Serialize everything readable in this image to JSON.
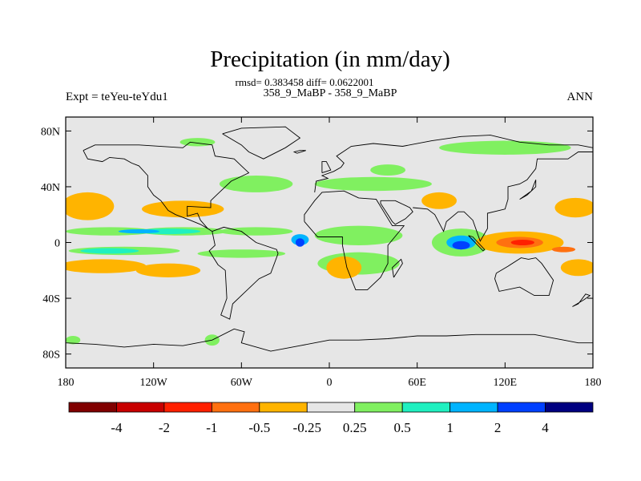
{
  "chart_data": {
    "type": "heatmap",
    "title": "Precipitation (in mm/day)",
    "stats_text": "rmsd= 0.383458 diff= 0.0622001",
    "subtitle": "358_9_MaBP - 358_9_MaBP",
    "left_label": "Expt = teYeu-teYdu1",
    "right_label": "ANN",
    "x_ticks": [
      {
        "value": -180,
        "label": "180"
      },
      {
        "value": -120,
        "label": "120W"
      },
      {
        "value": -60,
        "label": "60W"
      },
      {
        "value": 0,
        "label": "0"
      },
      {
        "value": 60,
        "label": "60E"
      },
      {
        "value": 120,
        "label": "120E"
      },
      {
        "value": 180,
        "label": "180"
      }
    ],
    "y_ticks": [
      {
        "value": 80,
        "label": "80N"
      },
      {
        "value": 40,
        "label": "40N"
      },
      {
        "value": 0,
        "label": "0"
      },
      {
        "value": -40,
        "label": "40S"
      },
      {
        "value": -80,
        "label": "80S"
      }
    ],
    "xlim": [
      -180,
      180
    ],
    "ylim": [
      -90,
      90
    ],
    "colorbar": {
      "colors": [
        "#800000",
        "#c80000",
        "#ff2000",
        "#ff7010",
        "#ffb400",
        "#e6e6e6",
        "#80f060",
        "#20f0c0",
        "#00b4ff",
        "#0040ff",
        "#000080"
      ],
      "labels": [
        "-4",
        "-2",
        "-1",
        "-0.5",
        "-0.25",
        "0.25",
        "0.5",
        "1",
        "2",
        "4"
      ]
    },
    "regions": [
      {
        "level": 0.25,
        "lon": -90,
        "lat": 72,
        "rlon": 12,
        "rlat": 3
      },
      {
        "level": 0.25,
        "lon": 120,
        "lat": 68,
        "rlon": 45,
        "rlat": 5
      },
      {
        "level": 0.25,
        "lon": 40,
        "lat": 52,
        "rlon": 12,
        "rlat": 4
      },
      {
        "level": 0.25,
        "lon": -50,
        "lat": 42,
        "rlon": 25,
        "rlat": 6
      },
      {
        "level": 0.25,
        "lon": 30,
        "lat": 42,
        "rlon": 40,
        "rlat": 5
      },
      {
        "level": 0.25,
        "lon": -150,
        "lat": 8,
        "rlon": 30,
        "rlat": 3
      },
      {
        "level": 0.25,
        "lon": -100,
        "lat": 8,
        "rlon": 30,
        "rlat": 3
      },
      {
        "level": 0.25,
        "lon": -50,
        "lat": 8,
        "rlon": 25,
        "rlat": 3
      },
      {
        "level": 0.25,
        "lon": 20,
        "lat": 5,
        "rlon": 30,
        "rlat": 7
      },
      {
        "level": 0.25,
        "lon": 90,
        "lat": 0,
        "rlon": 20,
        "rlat": 10
      },
      {
        "level": 0.25,
        "lon": -140,
        "lat": -6,
        "rlon": 38,
        "rlat": 3
      },
      {
        "level": 0.25,
        "lon": -60,
        "lat": -8,
        "rlon": 30,
        "rlat": 3
      },
      {
        "level": 0.25,
        "lon": 20,
        "lat": -15,
        "rlon": 28,
        "rlat": 8
      },
      {
        "level": 0.25,
        "lon": -80,
        "lat": -70,
        "rlon": 5,
        "rlat": 4
      },
      {
        "level": 0.25,
        "lon": -175,
        "lat": -70,
        "rlon": 5,
        "rlat": 3
      },
      {
        "level": 0.5,
        "lon": -110,
        "lat": 8,
        "rlon": 22,
        "rlat": 2
      },
      {
        "level": 0.5,
        "lon": -150,
        "lat": -6,
        "rlon": 20,
        "rlat": 2
      },
      {
        "level": 1,
        "lon": -130,
        "lat": 8,
        "rlon": 14,
        "rlat": 1.5
      },
      {
        "level": 1,
        "lon": -20,
        "lat": 2,
        "rlon": 6,
        "rlat": 4
      },
      {
        "level": 1,
        "lon": 90,
        "lat": 0,
        "rlon": 10,
        "rlat": 5
      },
      {
        "level": 2,
        "lon": -20,
        "lat": 0,
        "rlon": 3,
        "rlat": 3
      },
      {
        "level": 2,
        "lon": 90,
        "lat": -2,
        "rlon": 6,
        "rlat": 3
      },
      {
        "level": -0.25,
        "lon": -165,
        "lat": 26,
        "rlon": 18,
        "rlat": 10
      },
      {
        "level": -0.25,
        "lon": -100,
        "lat": 24,
        "rlon": 28,
        "rlat": 6
      },
      {
        "level": -0.25,
        "lon": -155,
        "lat": -17,
        "rlon": 30,
        "rlat": 5
      },
      {
        "level": -0.25,
        "lon": -110,
        "lat": -20,
        "rlon": 22,
        "rlat": 5
      },
      {
        "level": -0.25,
        "lon": 168,
        "lat": 25,
        "rlon": 14,
        "rlat": 7
      },
      {
        "level": -0.25,
        "lon": 170,
        "lat": -18,
        "rlon": 12,
        "rlat": 6
      },
      {
        "level": -0.25,
        "lon": 130,
        "lat": 0,
        "rlon": 30,
        "rlat": 8
      },
      {
        "level": -0.25,
        "lon": 75,
        "lat": 30,
        "rlon": 12,
        "rlat": 6
      },
      {
        "level": -0.25,
        "lon": 10,
        "lat": -18,
        "rlon": 12,
        "rlat": 8
      },
      {
        "level": -0.5,
        "lon": -165,
        "lat": -17,
        "rlon": 16,
        "rlat": 3
      },
      {
        "level": -0.5,
        "lon": -170,
        "lat": 28,
        "rlon": 8,
        "rlat": 4
      },
      {
        "level": -0.5,
        "lon": -115,
        "lat": -20,
        "rlon": 6,
        "rlat": 2
      },
      {
        "level": -0.5,
        "lon": 130,
        "lat": 0,
        "rlon": 22,
        "rlat": 6
      },
      {
        "level": -1,
        "lon": 130,
        "lat": 0,
        "rlon": 16,
        "rlat": 4
      },
      {
        "level": -2,
        "lon": 132,
        "lat": 0,
        "rlon": 8,
        "rlat": 2
      },
      {
        "level": -1,
        "lon": 160,
        "lat": -5,
        "rlon": 8,
        "rlat": 2
      }
    ],
    "coastlines": [
      [
        [
          -180,
          -72
        ],
        [
          -160,
          -73
        ],
        [
          -140,
          -75
        ],
        [
          -120,
          -73
        ],
        [
          -100,
          -74
        ],
        [
          -80,
          -70
        ],
        [
          -65,
          -62
        ],
        [
          -58,
          -64
        ],
        [
          -60,
          -72
        ],
        [
          -40,
          -78
        ],
        [
          -20,
          -74
        ],
        [
          0,
          -70
        ],
        [
          20,
          -70
        ],
        [
          40,
          -69
        ],
        [
          60,
          -67
        ],
        [
          80,
          -67
        ],
        [
          100,
          -66
        ],
        [
          120,
          -66
        ],
        [
          140,
          -66
        ],
        [
          160,
          -70
        ],
        [
          170,
          -72
        ],
        [
          180,
          -72
        ]
      ],
      [
        [
          -80,
          8
        ],
        [
          -78,
          -2
        ],
        [
          -82,
          -6
        ],
        [
          -76,
          -16
        ],
        [
          -71,
          -20
        ],
        [
          -70,
          -40
        ],
        [
          -74,
          -52
        ],
        [
          -68,
          -55
        ],
        [
          -66,
          -44
        ],
        [
          -58,
          -36
        ],
        [
          -48,
          -26
        ],
        [
          -40,
          -22
        ],
        [
          -35,
          -8
        ],
        [
          -36,
          -5
        ],
        [
          -50,
          0
        ],
        [
          -60,
          8
        ],
        [
          -72,
          11
        ],
        [
          -80,
          8
        ]
      ],
      [
        [
          -17,
          15
        ],
        [
          -17,
          20
        ],
        [
          -10,
          30
        ],
        [
          -5,
          36
        ],
        [
          10,
          37
        ],
        [
          20,
          32
        ],
        [
          32,
          31
        ],
        [
          43,
          12
        ],
        [
          51,
          12
        ],
        [
          40,
          -2
        ],
        [
          40,
          -15
        ],
        [
          35,
          -25
        ],
        [
          26,
          -34
        ],
        [
          18,
          -34
        ],
        [
          12,
          -18
        ],
        [
          9,
          -2
        ],
        [
          9,
          4
        ],
        [
          -8,
          4
        ],
        [
          -17,
          15
        ]
      ],
      [
        [
          -10,
          36
        ],
        [
          -9,
          44
        ],
        [
          -1,
          46
        ],
        [
          -5,
          48
        ],
        [
          3,
          51
        ],
        [
          8,
          54
        ],
        [
          10,
          57
        ],
        [
          5,
          62
        ],
        [
          15,
          69
        ],
        [
          30,
          71
        ],
        [
          50,
          69
        ],
        [
          70,
          73
        ],
        [
          90,
          76
        ],
        [
          110,
          77
        ],
        [
          130,
          72
        ],
        [
          150,
          70
        ],
        [
          170,
          70
        ],
        [
          180,
          68
        ]
      ],
      [
        [
          35,
          30
        ],
        [
          45,
          30
        ],
        [
          55,
          25
        ],
        [
          57,
          22
        ],
        [
          52,
          17
        ],
        [
          45,
          13
        ],
        [
          43,
          15
        ],
        [
          40,
          20
        ],
        [
          35,
          28
        ],
        [
          35,
          30
        ]
      ],
      [
        [
          57,
          25
        ],
        [
          67,
          24
        ],
        [
          72,
          20
        ],
        [
          78,
          8
        ],
        [
          80,
          15
        ],
        [
          88,
          22
        ],
        [
          92,
          22
        ],
        [
          98,
          16
        ],
        [
          103,
          1
        ],
        [
          108,
          10
        ],
        [
          108,
          21
        ],
        [
          120,
          24
        ],
        [
          122,
          31
        ],
        [
          122,
          40
        ],
        [
          130,
          42
        ],
        [
          135,
          45
        ],
        [
          141,
          53
        ],
        [
          142,
          60
        ],
        [
          155,
          60
        ],
        [
          163,
          60
        ],
        [
          170,
          65
        ],
        [
          180,
          65
        ]
      ],
      [
        [
          114,
          -22
        ],
        [
          113,
          -26
        ],
        [
          116,
          -35
        ],
        [
          130,
          -32
        ],
        [
          140,
          -38
        ],
        [
          150,
          -38
        ],
        [
          153,
          -27
        ],
        [
          145,
          -15
        ],
        [
          141,
          -11
        ],
        [
          136,
          -12
        ],
        [
          131,
          -11
        ],
        [
          122,
          -17
        ],
        [
          114,
          -22
        ]
      ],
      [
        [
          95,
          5
        ],
        [
          105,
          -6
        ],
        [
          106,
          -5
        ],
        [
          98,
          4
        ],
        [
          95,
          5
        ]
      ],
      [
        [
          -168,
          66
        ],
        [
          -160,
          70
        ],
        [
          -140,
          70
        ],
        [
          -130,
          70
        ],
        [
          -100,
          68
        ],
        [
          -95,
          72
        ],
        [
          -80,
          70
        ],
        [
          -78,
          62
        ],
        [
          -65,
          60
        ],
        [
          -60,
          55
        ],
        [
          -55,
          50
        ],
        [
          -67,
          44
        ],
        [
          -76,
          35
        ],
        [
          -81,
          30
        ],
        [
          -81,
          25
        ],
        [
          -97,
          26
        ],
        [
          -97,
          19
        ],
        [
          -90,
          21
        ],
        [
          -88,
          16
        ],
        [
          -83,
          10
        ],
        [
          -80,
          8
        ]
      ],
      [
        [
          -168,
          66
        ],
        [
          -165,
          60
        ],
        [
          -155,
          58
        ],
        [
          -150,
          61
        ],
        [
          -140,
          60
        ],
        [
          -135,
          57
        ],
        [
          -130,
          55
        ],
        [
          -124,
          48
        ],
        [
          -124,
          40
        ],
        [
          -120,
          34
        ],
        [
          -115,
          30
        ],
        [
          -110,
          23
        ],
        [
          -105,
          20
        ],
        [
          -95,
          16
        ],
        [
          -88,
          13
        ],
        [
          -83,
          10
        ]
      ],
      [
        [
          -73,
          78
        ],
        [
          -60,
          82
        ],
        [
          -30,
          83
        ],
        [
          -20,
          75
        ],
        [
          -30,
          68
        ],
        [
          -45,
          60
        ],
        [
          -55,
          65
        ],
        [
          -60,
          70
        ],
        [
          -73,
          78
        ]
      ],
      [
        [
          -16,
          66
        ],
        [
          -22,
          64
        ],
        [
          -24,
          65
        ],
        [
          -20,
          66
        ],
        [
          -16,
          66
        ]
      ],
      [
        [
          130,
          31
        ],
        [
          135,
          34
        ],
        [
          141,
          40
        ],
        [
          141,
          45
        ],
        [
          138,
          37
        ],
        [
          130,
          31
        ]
      ],
      [
        [
          166,
          -46
        ],
        [
          174,
          -41
        ],
        [
          178,
          -38
        ],
        [
          175,
          -37
        ],
        [
          170,
          -44
        ],
        [
          166,
          -46
        ]
      ],
      [
        [
          -5,
          50
        ],
        [
          -5,
          58
        ],
        [
          -2,
          58
        ],
        [
          1,
          52
        ],
        [
          -5,
          50
        ]
      ],
      [
        [
          44,
          -25
        ],
        [
          50,
          -15
        ],
        [
          49,
          -12
        ],
        [
          43,
          -18
        ],
        [
          44,
          -25
        ]
      ]
    ]
  }
}
